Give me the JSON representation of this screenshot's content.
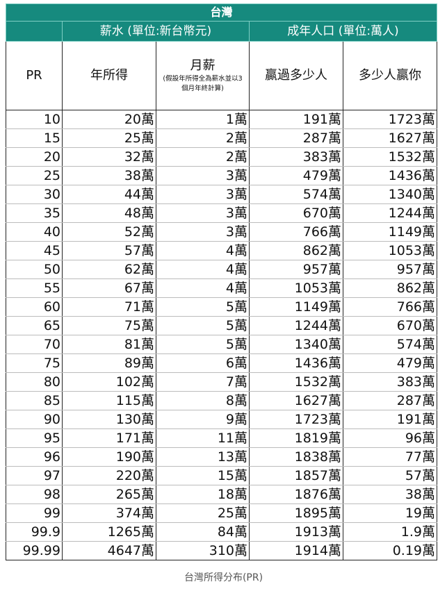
{
  "title": "台灣",
  "groups": {
    "salary": "薪水 (單位:新台幣元)",
    "population": "成年人口 (單位:萬人)"
  },
  "headers": {
    "pr": "PR",
    "annual": "年所得",
    "monthly": "月薪",
    "monthly_note": "(假設年所得全為薪水並以3個月年終計算)",
    "beat": "贏過多少人",
    "beaten_by": "多少人贏你"
  },
  "rows": [
    [
      "10",
      "20萬",
      "1萬",
      "191萬",
      "1723萬"
    ],
    [
      "15",
      "25萬",
      "2萬",
      "287萬",
      "1627萬"
    ],
    [
      "20",
      "32萬",
      "2萬",
      "383萬",
      "1532萬"
    ],
    [
      "25",
      "38萬",
      "3萬",
      "479萬",
      "1436萬"
    ],
    [
      "30",
      "44萬",
      "3萬",
      "574萬",
      "1340萬"
    ],
    [
      "35",
      "48萬",
      "3萬",
      "670萬",
      "1244萬"
    ],
    [
      "40",
      "52萬",
      "3萬",
      "766萬",
      "1149萬"
    ],
    [
      "45",
      "57萬",
      "4萬",
      "862萬",
      "1053萬"
    ],
    [
      "50",
      "62萬",
      "4萬",
      "957萬",
      "957萬"
    ],
    [
      "55",
      "67萬",
      "4萬",
      "1053萬",
      "862萬"
    ],
    [
      "60",
      "71萬",
      "5萬",
      "1149萬",
      "766萬"
    ],
    [
      "65",
      "75萬",
      "5萬",
      "1244萬",
      "670萬"
    ],
    [
      "70",
      "81萬",
      "5萬",
      "1340萬",
      "574萬"
    ],
    [
      "75",
      "89萬",
      "6萬",
      "1436萬",
      "479萬"
    ],
    [
      "80",
      "102萬",
      "7萬",
      "1532萬",
      "383萬"
    ],
    [
      "85",
      "115萬",
      "8萬",
      "1627萬",
      "287萬"
    ],
    [
      "90",
      "130萬",
      "9萬",
      "1723萬",
      "191萬"
    ],
    [
      "95",
      "171萬",
      "11萬",
      "1819萬",
      "96萬"
    ],
    [
      "96",
      "190萬",
      "13萬",
      "1838萬",
      "77萬"
    ],
    [
      "97",
      "220萬",
      "15萬",
      "1857萬",
      "57萬"
    ],
    [
      "98",
      "265萬",
      "18萬",
      "1876萬",
      "38萬"
    ],
    [
      "99",
      "374萬",
      "25萬",
      "1895萬",
      "19萬"
    ],
    [
      "99.9",
      "1265萬",
      "84萬",
      "1913萬",
      "1.9萬"
    ],
    [
      "99.99",
      "4647萬",
      "310萬",
      "1914萬",
      "0.19萬"
    ]
  ],
  "caption": "台灣所得分布(PR)",
  "colors": {
    "header_green": "#168a7e"
  }
}
